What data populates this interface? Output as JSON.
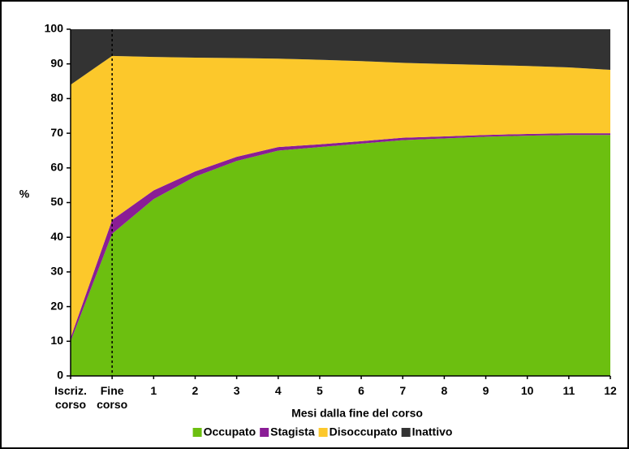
{
  "chart_data": {
    "type": "stacked-area",
    "x_label": "Mesi dalla fine del corso",
    "y_label": "%",
    "categories": [
      "Iscriz. corso",
      "Fine corso",
      "1",
      "2",
      "3",
      "4",
      "5",
      "6",
      "7",
      "8",
      "9",
      "10",
      "11",
      "12"
    ],
    "ylim": [
      0,
      100
    ],
    "yticks": [
      0,
      10,
      20,
      30,
      40,
      50,
      60,
      70,
      80,
      90,
      100
    ],
    "series": [
      {
        "name": "Occupato",
        "color": "#6cbf10",
        "values": [
          10,
          41,
          51,
          57.5,
          62,
          65,
          66,
          67,
          68,
          68.5,
          69,
          69.3,
          69.5,
          69.5
        ]
      },
      {
        "name": "Stagista",
        "color": "#8a1d96",
        "values": [
          1,
          4,
          2.5,
          1.5,
          1.2,
          1,
          0.8,
          0.7,
          0.7,
          0.6,
          0.5,
          0.5,
          0.5,
          0.5
        ]
      },
      {
        "name": "Disoccupato",
        "color": "#fcc82b",
        "values": [
          73,
          47.3,
          38.5,
          32.8,
          28.5,
          25.5,
          24.4,
          23.1,
          21.6,
          20.9,
          20.2,
          19.6,
          19,
          18.3
        ]
      },
      {
        "name": "Inattivo",
        "color": "#333333",
        "values": [
          16,
          7.7,
          8,
          8.2,
          8.3,
          8.5,
          8.8,
          9.2,
          9.7,
          10,
          10.3,
          10.6,
          11,
          11.7
        ]
      }
    ]
  }
}
